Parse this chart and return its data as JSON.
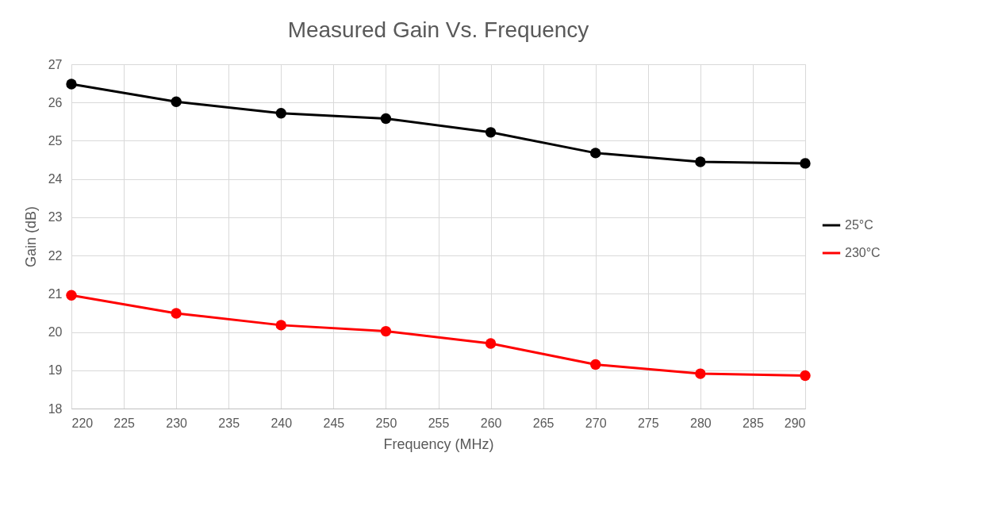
{
  "chart_data": {
    "type": "line",
    "title": "Measured Gain Vs. Frequency",
    "xlabel": "Frequency (MHz)",
    "ylabel": "Gain (dB)",
    "x": [
      220,
      230,
      240,
      250,
      260,
      270,
      280,
      290
    ],
    "series": [
      {
        "name": "25°C",
        "color": "#000000",
        "values": [
          26.48,
          26.02,
          25.72,
          25.58,
          25.22,
          24.68,
          24.45,
          24.41
        ]
      },
      {
        "name": "230°C",
        "color": "#ff0000",
        "values": [
          20.96,
          20.49,
          20.18,
          20.02,
          19.7,
          19.15,
          18.91,
          18.86
        ]
      }
    ],
    "xlim": [
      220,
      290
    ],
    "xticks": [
      220,
      225,
      230,
      235,
      240,
      245,
      250,
      255,
      260,
      265,
      270,
      275,
      280,
      285,
      290
    ],
    "ylim": [
      18,
      27
    ],
    "yticks": [
      18,
      19,
      20,
      21,
      22,
      23,
      24,
      25,
      26,
      27
    ],
    "grid": true,
    "legend": "right",
    "marker": "circle",
    "line_style": "solid"
  }
}
